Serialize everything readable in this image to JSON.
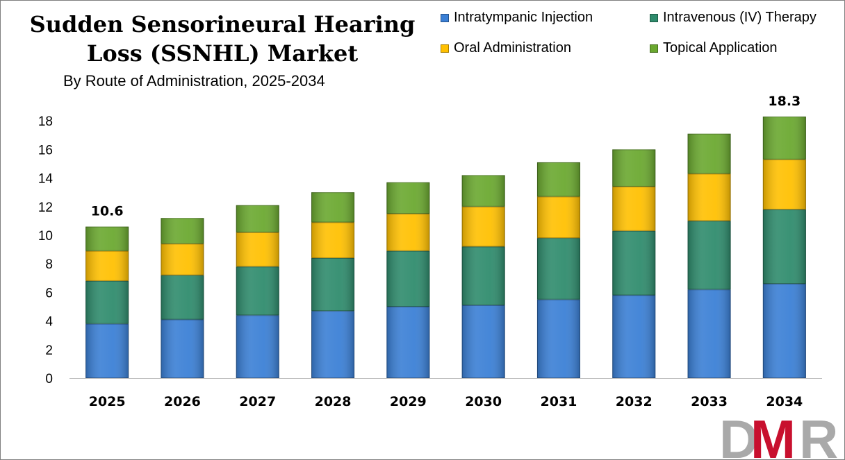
{
  "chart_data": {
    "type": "bar",
    "stacked": true,
    "title": "Sudden Sensorineural Hearing Loss (SSNHL) Market",
    "subtitle": "By Route of Administration, 2025-2034",
    "xlabel": "",
    "ylabel": "",
    "categories": [
      "2025",
      "2026",
      "2027",
      "2028",
      "2029",
      "2030",
      "2031",
      "2032",
      "2033",
      "2034"
    ],
    "series": [
      {
        "name": "Intratympanic Injection",
        "color": "#3a7fd5",
        "values": [
          3.8,
          4.1,
          4.4,
          4.7,
          5.0,
          5.1,
          5.5,
          5.8,
          6.2,
          6.6
        ]
      },
      {
        "name": "Intravenous (IV) Therapy",
        "color": "#2e8b6c",
        "values": [
          3.0,
          3.1,
          3.4,
          3.7,
          3.9,
          4.1,
          4.3,
          4.5,
          4.8,
          5.2
        ]
      },
      {
        "name": "Oral Administration",
        "color": "#ffc000",
        "values": [
          2.1,
          2.2,
          2.4,
          2.5,
          2.6,
          2.8,
          2.9,
          3.1,
          3.3,
          3.5
        ]
      },
      {
        "name": "Topical Application",
        "color": "#6aa82f",
        "values": [
          1.7,
          1.8,
          1.9,
          2.1,
          2.2,
          2.2,
          2.4,
          2.6,
          2.8,
          3.0
        ]
      }
    ],
    "totals_shown": {
      "2025": "10.6",
      "2034": "18.3"
    },
    "yticks": [
      0,
      2,
      4,
      6,
      8,
      10,
      12,
      14,
      16,
      18
    ],
    "ylim": [
      0,
      20
    ],
    "grid": false,
    "legend_position": "top-right"
  },
  "brand": {
    "logo_text": "DMR",
    "colors": {
      "d": "#a9a9a9",
      "m": "#c8102e",
      "r": "#a9a9a9"
    }
  }
}
